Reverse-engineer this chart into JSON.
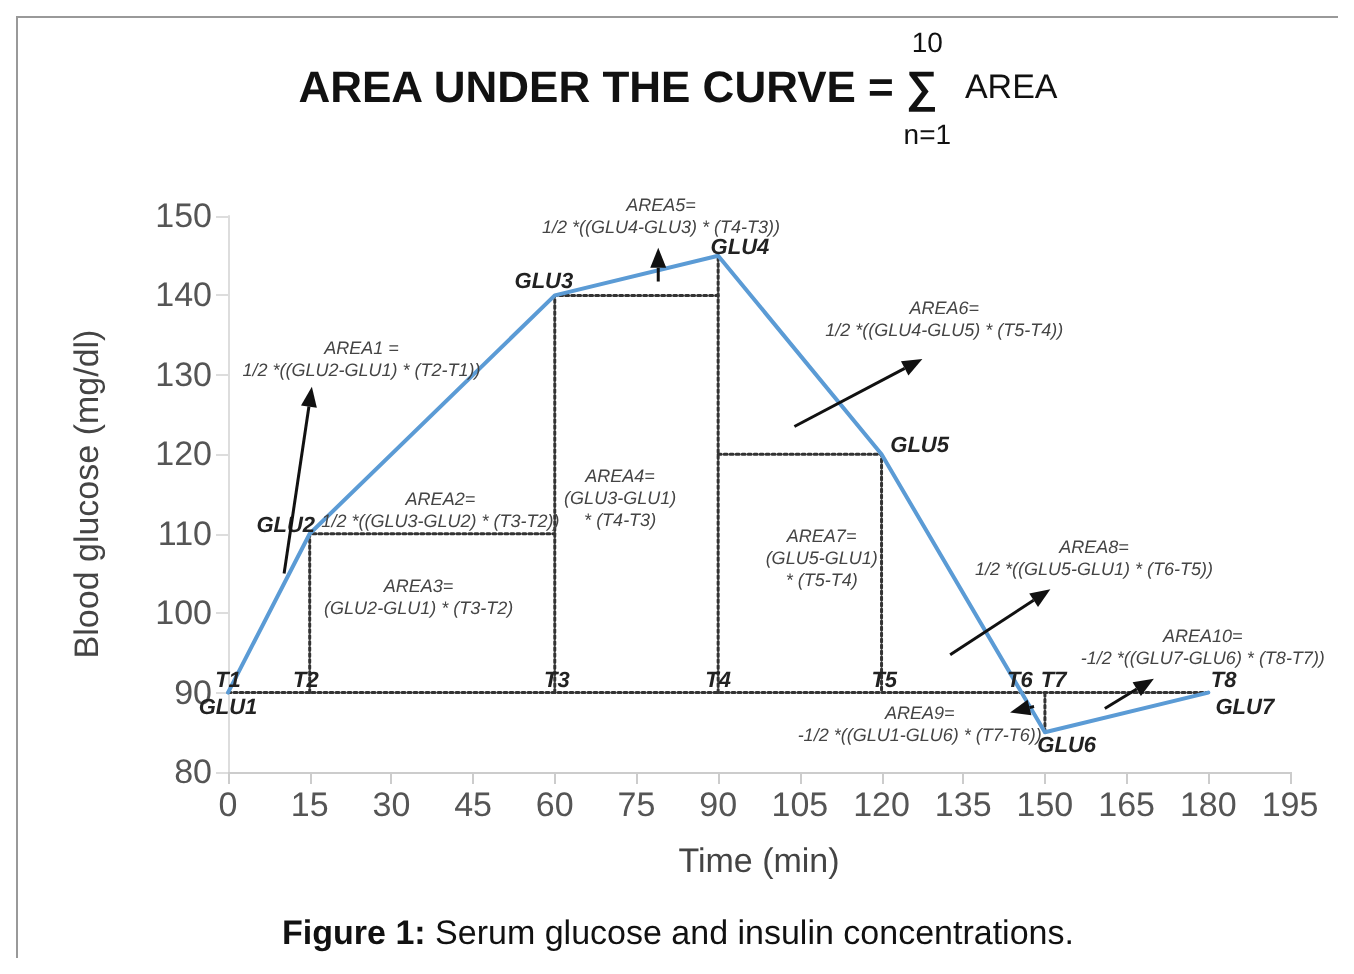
{
  "chart_data": {
    "type": "line",
    "title": "AREA UNDER THE CURVE = ∑$^{10}$$_{n=1}$ AREA",
    "xlabel": "Time (min)",
    "ylabel": "Blood glucose (mg/dl)",
    "series": [
      {
        "color": "#5b9bd5",
        "x": [
          0,
          15,
          60,
          90,
          120,
          150,
          180
        ],
        "values": [
          90,
          110,
          140,
          145,
          120,
          85,
          90
        ]
      },
      {
        "color": "#333333",
        "line_style": "dotted",
        "x": [
          0,
          180
        ],
        "values": [
          90,
          90
        ]
      },
      {
        "color": "#333333",
        "line_style": "dotted",
        "x": [
          15,
          15,
          60
        ],
        "values": [
          90,
          110,
          110
        ]
      },
      {
        "color": "#333333",
        "line_style": "dotted",
        "x": [
          60,
          60,
          90
        ],
        "values": [
          90,
          140,
          140
        ]
      },
      {
        "color": "#333333",
        "line_style": "dotted",
        "x": [
          90,
          90
        ],
        "values": [
          90,
          145
        ]
      },
      {
        "color": "#333333",
        "line_style": "dotted",
        "x": [
          90,
          120,
          120
        ],
        "values": [
          120,
          120,
          90
        ]
      },
      {
        "color": "#333333",
        "line_style": "dotted",
        "x": [
          150,
          150
        ],
        "values": [
          85,
          90
        ]
      }
    ],
    "xlim": [
      0,
      195
    ],
    "xticks": [
      0,
      15,
      30,
      45,
      60,
      75,
      90,
      105,
      120,
      135,
      150,
      165,
      180,
      195
    ],
    "ylim": [
      80,
      150
    ],
    "yticks": [
      80,
      90,
      100,
      110,
      120,
      130,
      140,
      150
    ],
    "marker": "none",
    "line_style": "solid",
    "annotations": [
      {
        "text": "GLU1",
        "x": 0,
        "y": 90
      },
      {
        "text": "GLU2",
        "x": 15,
        "y": 110
      },
      {
        "text": "GLU3",
        "x": 60,
        "y": 140
      },
      {
        "text": "GLU4",
        "x": 90,
        "y": 145
      },
      {
        "text": "GLU5",
        "x": 120,
        "y": 120
      },
      {
        "text": "GLU6",
        "x": 150,
        "y": 85
      },
      {
        "text": "GLU7",
        "x": 180,
        "y": 90
      },
      {
        "text": "T1",
        "x": 0,
        "y": 90
      },
      {
        "text": "T2",
        "x": 15,
        "y": 90
      },
      {
        "text": "T3",
        "x": 60,
        "y": 90
      },
      {
        "text": "T4",
        "x": 90,
        "y": 90
      },
      {
        "text": "T5",
        "x": 120,
        "y": 90
      },
      {
        "text": "T6",
        "x": 145.7,
        "y": 90
      },
      {
        "text": "T7",
        "x": 150,
        "y": 90
      },
      {
        "text": "T8",
        "x": 180,
        "y": 90
      },
      "AREA1 =\n1/2 *((GLU2-GLU1) * (T2-T1))",
      "AREA2=\n1/2 *((GLU3-GLU2) * (T3-T2))",
      "AREA3=\n(GLU2-GLU1) * (T3-T2)",
      "AREA4=\n(GLU3-GLU1)\n* (T4-T3)",
      "AREA5=\n1/2 *((GLU4-GLU3) * (T4-T3))",
      "AREA6=\n1/2 *((GLU4-GLU5) * (T5-T4))",
      "AREA7=\n(GLU5-GLU1)\n* (T5-T4)",
      "AREA8=\n1/2 *((GLU5-GLU1) * (T6-T5))",
      "AREA9=\n-1/2 *((GLU1-GLU6) * (T7-T6))",
      "AREA10=\n-1/2 *((GLU7-GLU6) * (T8-T7))",
      "Figure 1: Serum glucose and insulin concentrations."
    ]
  }
}
